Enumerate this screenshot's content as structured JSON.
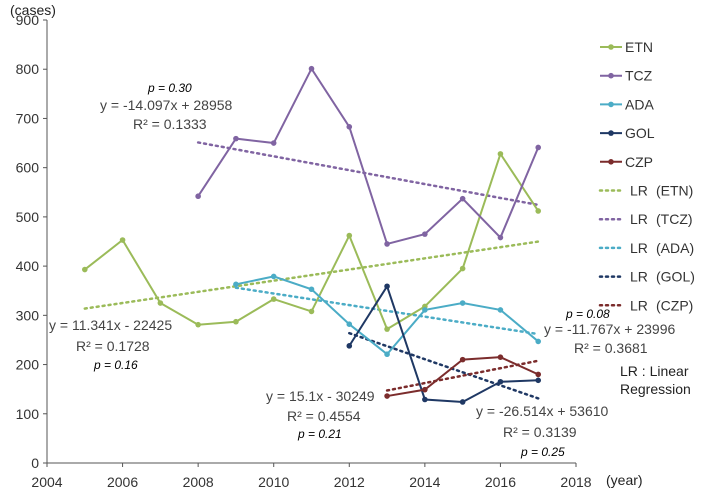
{
  "chart_data": {
    "type": "line",
    "title": "",
    "ylabel": "(cases)",
    "xlabel": "(year)",
    "xlim": [
      2004,
      2018
    ],
    "ylim": [
      0,
      900
    ],
    "xticks": [
      "2004",
      "2006",
      "2008",
      "2010",
      "2012",
      "2014",
      "2016",
      "2018"
    ],
    "yticks": [
      "0",
      "100",
      "200",
      "300",
      "400",
      "500",
      "600",
      "700",
      "800",
      "900"
    ],
    "grid": false,
    "legend_position": "right",
    "series": [
      {
        "name": "ETN",
        "color": "#9bbb59",
        "x": [
          2005,
          2006,
          2007,
          2008,
          2009,
          2010,
          2011,
          2012,
          2013,
          2014,
          2015,
          2016,
          2017
        ],
        "values": [
          393,
          453,
          325,
          281,
          287,
          333,
          308,
          462,
          272,
          318,
          395,
          628,
          512
        ]
      },
      {
        "name": "TCZ",
        "color": "#8064a2",
        "x": [
          2008,
          2009,
          2010,
          2011,
          2012,
          2013,
          2014,
          2015,
          2016,
          2017
        ],
        "values": [
          542,
          659,
          650,
          801,
          683,
          445,
          465,
          537,
          458,
          641
        ]
      },
      {
        "name": "ADA",
        "color": "#4bacc6",
        "x": [
          2009,
          2010,
          2011,
          2012,
          2013,
          2014,
          2015,
          2016,
          2017
        ],
        "values": [
          363,
          379,
          353,
          282,
          221,
          311,
          325,
          311,
          247
        ]
      },
      {
        "name": "GOL",
        "color": "#1f3864",
        "x": [
          2012,
          2013,
          2014,
          2015,
          2016,
          2017
        ],
        "values": [
          238,
          359,
          129,
          124,
          165,
          168
        ]
      },
      {
        "name": "CZP",
        "color": "#7b2c2c",
        "x": [
          2013,
          2014,
          2015,
          2016,
          2017
        ],
        "values": [
          136,
          149,
          210,
          215,
          180
        ]
      }
    ],
    "trendlines": [
      {
        "name": "LR",
        "series": "(ETN)",
        "color": "#9bbb59",
        "x_range": [
          2005,
          2017
        ],
        "slope": 11.341,
        "intercept": -22425
      },
      {
        "name": "LR",
        "series": "(TCZ)",
        "color": "#8064a2",
        "x_range": [
          2008,
          2017
        ],
        "slope": -14.097,
        "intercept": 28958
      },
      {
        "name": "LR",
        "series": "(ADA)",
        "color": "#4bacc6",
        "x_range": [
          2009,
          2017
        ],
        "slope": -11.767,
        "intercept": 23996
      },
      {
        "name": "LR",
        "series": "(GOL)",
        "color": "#1f3864",
        "x_range": [
          2012,
          2017
        ],
        "slope": -26.514,
        "intercept": 53610
      },
      {
        "name": "LR",
        "series": "(CZP)",
        "color": "#7b2c2c",
        "x_range": [
          2013,
          2017
        ],
        "slope": 15.1,
        "intercept": -30249
      }
    ],
    "annotations": [
      {
        "id": "tcz-p",
        "text": "p = 0.30"
      },
      {
        "id": "tcz-eq",
        "text": "y = -14.097x + 28958"
      },
      {
        "id": "tcz-r2",
        "text": "R² = 0.1333"
      },
      {
        "id": "etn-eq",
        "text": "y = 11.341x - 22425"
      },
      {
        "id": "etn-r2",
        "text": "R² = 0.1728"
      },
      {
        "id": "etn-p",
        "text": "p = 0.16"
      },
      {
        "id": "ada-p",
        "text": "p = 0.08"
      },
      {
        "id": "ada-eq",
        "text": "y = -11.767x + 23996"
      },
      {
        "id": "ada-r2",
        "text": "R² = 0.3681"
      },
      {
        "id": "czp-eq",
        "text": "y = 15.1x - 30249"
      },
      {
        "id": "czp-r2",
        "text": "R² = 0.4554"
      },
      {
        "id": "czp-p",
        "text": "p = 0.21"
      },
      {
        "id": "gol-eq",
        "text": "y = -26.514x + 53610"
      },
      {
        "id": "gol-r2",
        "text": "R² = 0.3139"
      },
      {
        "id": "gol-p",
        "text": "p = 0.25"
      }
    ],
    "note": [
      "LR : Linear",
      "Regression"
    ]
  }
}
